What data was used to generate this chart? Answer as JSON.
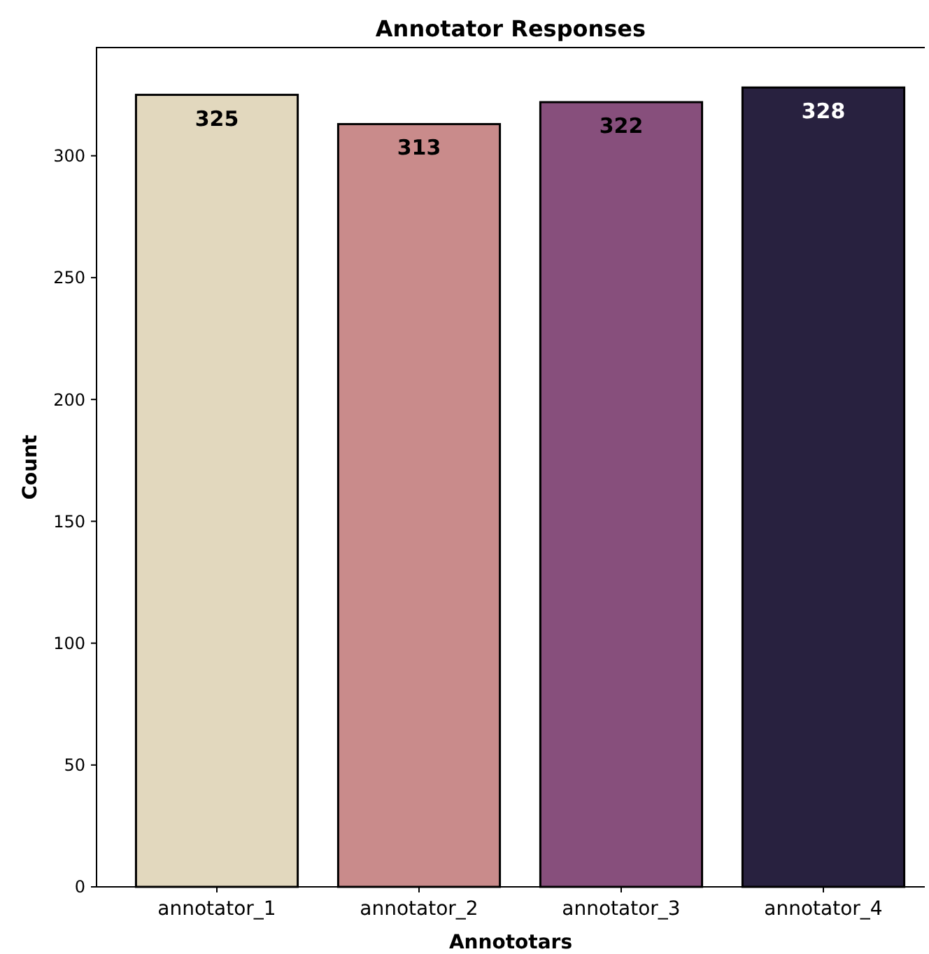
{
  "chart_data": {
    "type": "bar",
    "title": "Annotator Responses",
    "xlabel": "Annototars",
    "ylabel": "Count",
    "categories": [
      "annotator_1",
      "annotator_2",
      "annotator_3",
      "annotator_4"
    ],
    "values": [
      325,
      313,
      322,
      328
    ],
    "colors": [
      "#e2d8be",
      "#c98b8b",
      "#874f7c",
      "#28213f"
    ],
    "ylim": [
      0,
      344.4
    ],
    "yticks": [
      0,
      50,
      100,
      150,
      200,
      250,
      300
    ],
    "data_labels": true,
    "grid": false
  }
}
